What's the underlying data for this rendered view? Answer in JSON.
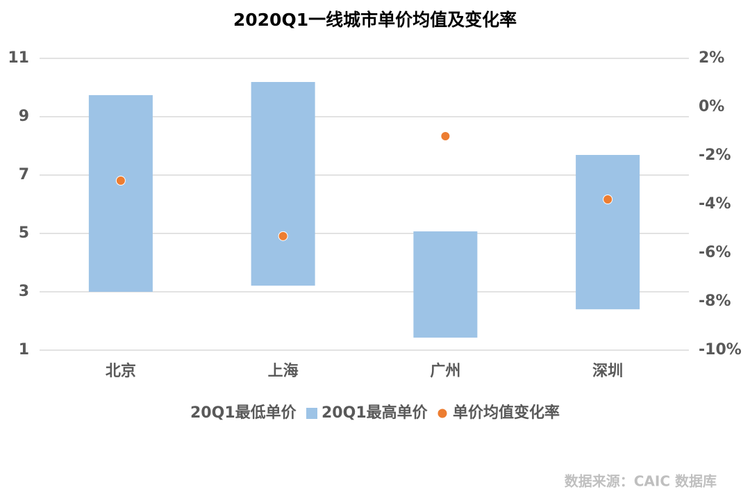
{
  "chart_data": {
    "type": "floating-bar",
    "title": "2020Q1一线城市单价均值及变化率",
    "categories": [
      "北京",
      "上海",
      "广州",
      "深圳"
    ],
    "series": [
      {
        "name": "20Q1最低单价",
        "color": "none",
        "values": [
          3.0,
          3.21,
          1.43,
          2.4
        ]
      },
      {
        "name": "20Q1最高单价",
        "color": "#9dc3e6",
        "values": [
          9.74,
          10.19,
          5.07,
          7.69
        ]
      },
      {
        "name": "单价均值变化率",
        "color": "#ed7d31",
        "axis": "y2",
        "values": [
          -3.03,
          -5.31,
          -1.2,
          -3.8
        ]
      }
    ],
    "ylim": [
      1,
      11
    ],
    "yticks": [
      1,
      3,
      5,
      7,
      9,
      11
    ],
    "y2lim": [
      -10,
      2
    ],
    "y2ticks": [
      {
        "value": -10,
        "label": "-10%"
      },
      {
        "value": -8,
        "label": "-8%"
      },
      {
        "value": -6,
        "label": "-6%"
      },
      {
        "value": -4,
        "label": "-4%"
      },
      {
        "value": -2,
        "label": "-2%"
      },
      {
        "value": 0,
        "label": "0%"
      },
      {
        "value": 2,
        "label": "2%"
      }
    ],
    "grid": true,
    "legend": "bottom",
    "source": "数据来源：CAIC 数据库"
  }
}
